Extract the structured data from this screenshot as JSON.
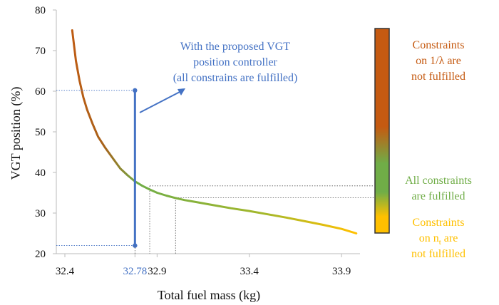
{
  "chart_data": {
    "type": "line",
    "xlabel": "Total fuel mass (kg)",
    "ylabel": "VGT position (%)",
    "xlim": [
      32.4,
      34.0
    ],
    "ylim": [
      20,
      80
    ],
    "x_ticks": [
      {
        "value": 32.4,
        "label": "32.4"
      },
      {
        "value": 32.78,
        "label": "32.78",
        "highlight": true
      },
      {
        "value": 32.9,
        "label": "32.9"
      },
      {
        "value": 33.4,
        "label": "33.4"
      },
      {
        "value": 33.9,
        "label": "33.9"
      }
    ],
    "y_ticks": [
      20,
      30,
      40,
      50,
      60,
      70,
      80
    ],
    "grid": false,
    "series": [
      {
        "x": [
          32.44,
          32.46,
          32.48,
          32.5,
          32.52,
          32.55,
          32.58,
          32.62,
          32.66,
          32.7,
          32.74,
          32.78,
          32.82,
          32.86,
          32.9,
          32.95,
          33.0,
          33.05,
          33.1,
          33.2,
          33.3,
          33.4,
          33.5,
          33.6,
          33.7,
          33.8,
          33.9,
          33.98
        ],
        "y": [
          75.0,
          67.5,
          62.5,
          58.5,
          55.5,
          52.0,
          48.8,
          46.0,
          43.5,
          41.0,
          39.3,
          37.8,
          36.7,
          35.8,
          35.0,
          34.3,
          33.7,
          33.2,
          32.8,
          32.0,
          31.2,
          30.5,
          29.7,
          28.9,
          28.0,
          27.1,
          26.1,
          25.0
        ]
      }
    ],
    "colors": {
      "curve_start": "#c55a11",
      "curve_mid": "#70ad47",
      "curve_end": "#ffc000",
      "controller": "#4472c4"
    },
    "controller_bar": {
      "x": 32.78,
      "y_min": 22,
      "y_max": 60.2
    },
    "reference_lines": [
      {
        "x": 32.86,
        "y": 36.7
      },
      {
        "x": 33.0,
        "y": 33.8
      }
    ],
    "colorbar": {
      "stops": [
        "#c55a11",
        "#c55a11",
        "#70ad47",
        "#ffc000"
      ],
      "labels": [
        {
          "lines": [
            "Constraints",
            "on 1/λ are",
            "not fulfilled"
          ],
          "color": "#c55a11"
        },
        {
          "lines": [
            "All constraints",
            "are fulfilled"
          ],
          "color": "#70ad47"
        },
        {
          "lines": [
            "Constraints",
            "on n",
            "not fulfilled"
          ],
          "subscript": "t",
          "suffix": " are",
          "color": "#ffc000"
        }
      ]
    },
    "annotation": {
      "lines": [
        "With the proposed VGT",
        "position controller",
        "(all constrains are fulfilled)"
      ],
      "color": "#4472c4"
    }
  }
}
